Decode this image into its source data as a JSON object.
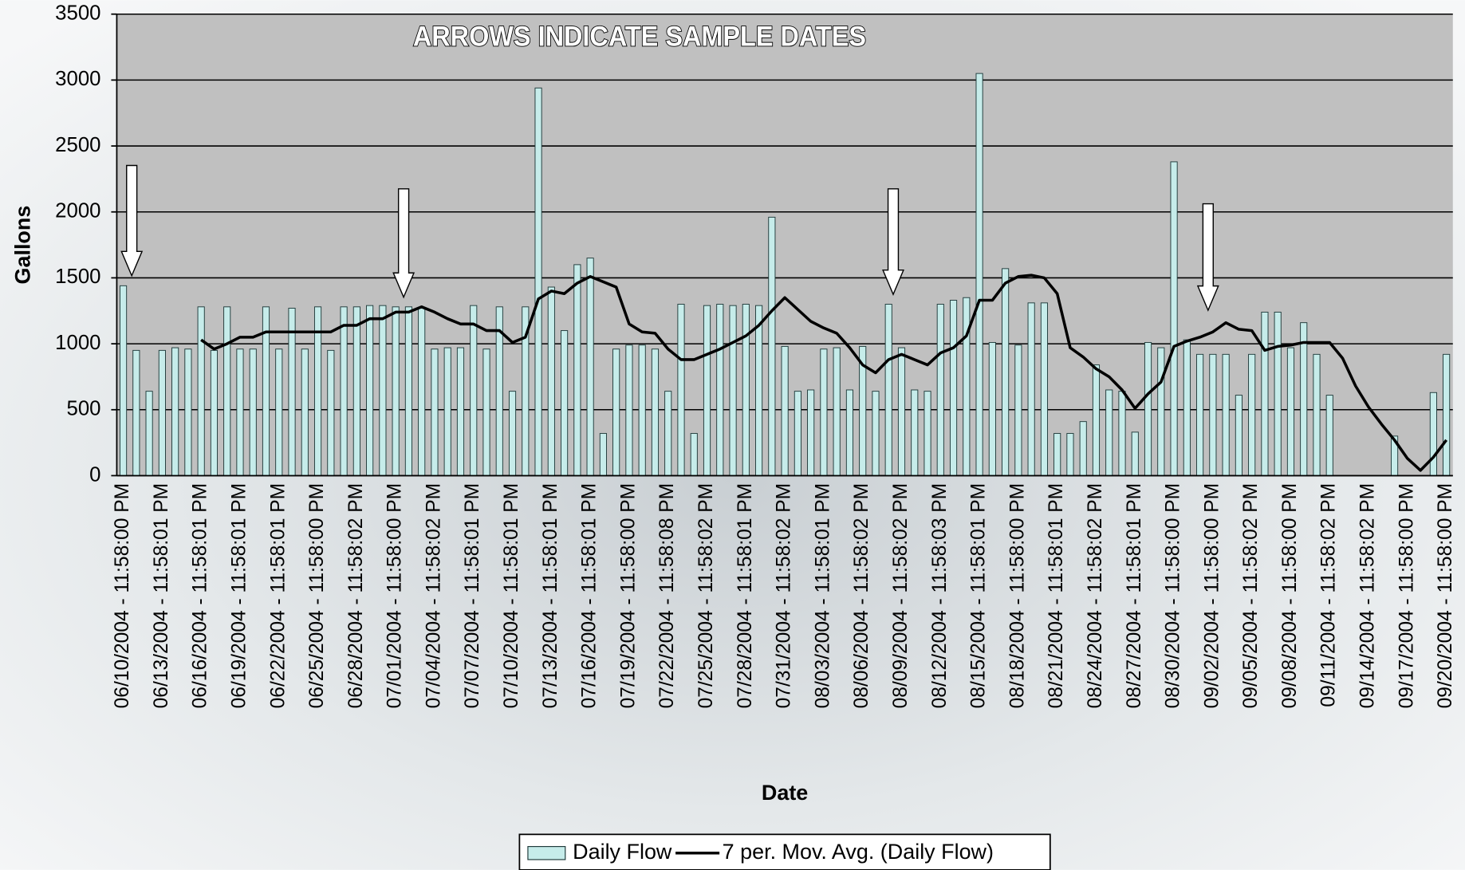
{
  "chart_data": {
    "type": "bar",
    "annotation": "ARROWS INDICATE SAMPLE DATES",
    "x_label": "Date",
    "y_label": "Gallons",
    "categories": [
      "06/10/2004 - 11:58:00 PM",
      null,
      null,
      "06/13/2004 - 11:58:01 PM",
      null,
      null,
      "06/16/2004 - 11:58:01 PM",
      null,
      null,
      "06/19/2004 - 11:58:01 PM",
      null,
      null,
      "06/22/2004 - 11:58:01 PM",
      null,
      null,
      "06/25/2004 - 11:58:00 PM",
      null,
      null,
      "06/28/2004 - 11:58:02 PM",
      null,
      null,
      "07/01/2004 - 11:58:00 PM",
      null,
      null,
      "07/04/2004 - 11:58:02 PM",
      null,
      null,
      "07/07/2004 - 11:58:01 PM",
      null,
      null,
      "07/10/2004 - 11:58:01 PM",
      null,
      null,
      "07/13/2004 - 11:58:01 PM",
      null,
      null,
      "07/16/2004 - 11:58:01 PM",
      null,
      null,
      "07/19/2004 - 11:58:00 PM",
      null,
      null,
      "07/22/2004 - 11:58:08 PM",
      null,
      null,
      "07/25/2004 - 11:58:02 PM",
      null,
      null,
      "07/28/2004 - 11:58:01 PM",
      null,
      null,
      "07/31/2004 - 11:58:02 PM",
      null,
      null,
      "08/03/2004 - 11:58:01 PM",
      null,
      null,
      "08/06/2004 - 11:58:02 PM",
      null,
      null,
      "08/09/2004 - 11:58:02 PM",
      null,
      null,
      "08/12/2004 - 11:58:03 PM",
      null,
      null,
      "08/15/2004 - 11:58:01 PM",
      null,
      null,
      "08/18/2004 - 11:58:00 PM",
      null,
      null,
      "08/21/2004 - 11:58:01 PM",
      null,
      null,
      "08/24/2004 - 11:58:02 PM",
      null,
      null,
      "08/27/2004 - 11:58:01 PM",
      null,
      null,
      "08/30/2004 - 11:58:00 PM",
      null,
      null,
      "09/02/2004 - 11:58:00 PM",
      null,
      null,
      "09/05/2004 - 11:58:02 PM",
      null,
      null,
      "09/08/2004 - 11:58:00 PM",
      null,
      null,
      "09/11/2004 - 11:58:02 PM",
      null,
      null,
      "09/14/2004 - 11:58:02 PM",
      null,
      null,
      "09/17/2004 - 11:58:00 PM",
      null,
      null,
      "09/20/2004 - 11:58:00 PM"
    ],
    "series": [
      {
        "name": "Daily Flow",
        "type": "bar",
        "color": "#c6ecea",
        "values": [
          1440,
          950,
          640,
          950,
          970,
          960,
          1280,
          950,
          1280,
          960,
          960,
          1280,
          960,
          1270,
          960,
          1280,
          950,
          1280,
          1280,
          1290,
          1290,
          1280,
          1280,
          1270,
          960,
          970,
          970,
          1290,
          960,
          1280,
          640,
          1280,
          2940,
          1430,
          1100,
          1600,
          1650,
          320,
          960,
          990,
          990,
          960,
          640,
          1300,
          320,
          1290,
          1300,
          1290,
          1300,
          1290,
          1960,
          980,
          640,
          650,
          960,
          970,
          650,
          980,
          640,
          1300,
          970,
          650,
          640,
          1300,
          1330,
          1350,
          3050,
          1010,
          1570,
          990,
          1310,
          1310,
          320,
          320,
          410,
          840,
          650,
          640,
          330,
          1010,
          970,
          2380,
          1030,
          920,
          920,
          920,
          610,
          920,
          1240,
          1240,
          970,
          1160,
          920,
          610,
          null,
          null,
          null,
          null,
          300,
          null,
          null,
          630,
          920
        ]
      },
      {
        "name": "7 per. Mov. Avg. (Daily Flow)",
        "type": "line",
        "color": "#000000",
        "values": [
          null,
          null,
          null,
          null,
          null,
          null,
          1030,
          960,
          1000,
          1050,
          1050,
          1090,
          1090,
          1090,
          1090,
          1090,
          1090,
          1140,
          1140,
          1190,
          1190,
          1240,
          1240,
          1280,
          1240,
          1190,
          1150,
          1150,
          1100,
          1100,
          1010,
          1050,
          1340,
          1400,
          1380,
          1460,
          1510,
          1470,
          1430,
          1150,
          1090,
          1080,
          960,
          880,
          880,
          920,
          960,
          1010,
          1060,
          1140,
          1250,
          1350,
          1260,
          1170,
          1120,
          1080,
          970,
          840,
          780,
          880,
          920,
          880,
          840,
          930,
          970,
          1060,
          1330,
          1330,
          1460,
          1510,
          1520,
          1500,
          1380,
          970,
          900,
          810,
          750,
          650,
          510,
          620,
          710,
          980,
          1020,
          1050,
          1090,
          1160,
          1110,
          1100,
          950,
          980,
          990,
          1010,
          1010,
          1010,
          890,
          680,
          520,
          390,
          270,
          130,
          40,
          140,
          270
        ]
      }
    ],
    "ylim": [
      0,
      3500
    ],
    "yticks": [
      0,
      500,
      1000,
      1500,
      2000,
      2500,
      3000,
      3500
    ],
    "grid": true,
    "legend": "bottom"
  }
}
